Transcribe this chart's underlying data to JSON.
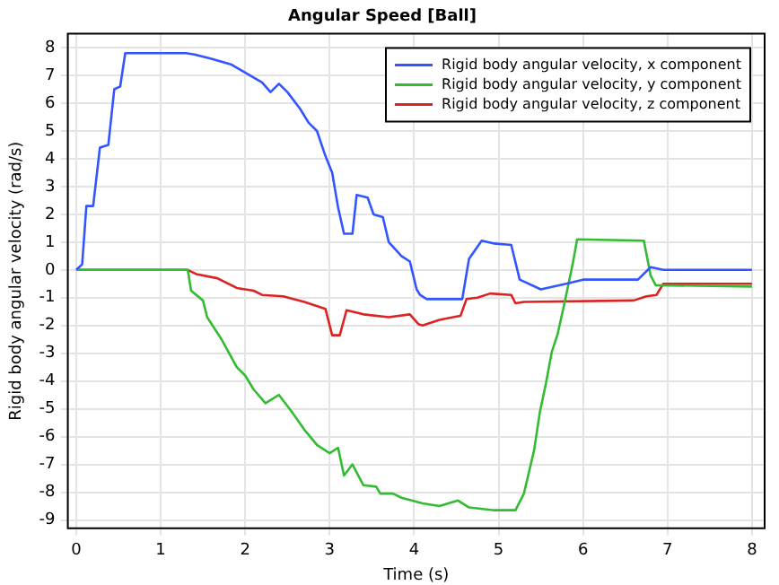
{
  "chart_data": {
    "type": "line",
    "title": "Angular Speed [Ball]",
    "xlabel": "Time (s)",
    "ylabel": "Rigid body angular velocity (rad/s)",
    "xlim": [
      -0.1,
      8.15
    ],
    "ylim": [
      -9.3,
      8.5
    ],
    "xticks": [
      0,
      1,
      2,
      3,
      4,
      5,
      6,
      7,
      8
    ],
    "yticks": [
      -9,
      -8,
      -7,
      -6,
      -5,
      -4,
      -3,
      -2,
      -1,
      0,
      1,
      2,
      3,
      4,
      5,
      6,
      7,
      8
    ],
    "grid": true,
    "legend": "top right",
    "line_style": "solid",
    "marker": "none",
    "series": [
      {
        "name": "Rigid body angular velocity, x component",
        "color": "#3355ff",
        "x": [
          0,
          0.07,
          0.12,
          0.2,
          0.28,
          0.38,
          0.45,
          0.52,
          0.58,
          1.0,
          1.3,
          1.4,
          1.6,
          1.83,
          2.2,
          2.3,
          2.4,
          2.5,
          2.65,
          2.75,
          2.85,
          2.95,
          3.03,
          3.1,
          3.17,
          3.27,
          3.32,
          3.45,
          3.52,
          3.63,
          3.7,
          3.85,
          3.95,
          4.03,
          4.07,
          4.15,
          4.57,
          4.65,
          4.8,
          4.95,
          5.15,
          5.25,
          5.5,
          5.8,
          6.0,
          6.65,
          6.8,
          6.95,
          8
        ],
        "values": [
          0,
          0.2,
          2.3,
          2.3,
          4.4,
          4.5,
          6.5,
          6.6,
          7.8,
          7.8,
          7.8,
          7.75,
          7.6,
          7.4,
          6.75,
          6.4,
          6.7,
          6.4,
          5.8,
          5.3,
          5.0,
          4.1,
          3.5,
          2.25,
          1.3,
          1.3,
          2.7,
          2.6,
          2.0,
          1.9,
          1.0,
          0.5,
          0.3,
          -0.7,
          -0.9,
          -1.05,
          -1.05,
          0.4,
          1.05,
          0.95,
          0.9,
          -0.35,
          -0.7,
          -0.5,
          -0.35,
          -0.35,
          0.1,
          0,
          0
        ]
      },
      {
        "name": "Rigid body angular velocity, y component",
        "color": "#33bb33",
        "x": [
          0,
          1.32,
          1.36,
          1.5,
          1.55,
          1.72,
          1.9,
          2.0,
          2.1,
          2.24,
          2.4,
          2.55,
          2.7,
          2.85,
          3.0,
          3.1,
          3.17,
          3.27,
          3.4,
          3.55,
          3.6,
          3.75,
          3.85,
          4.1,
          4.3,
          4.52,
          4.65,
          4.95,
          5.2,
          5.3,
          5.42,
          5.49,
          5.56,
          5.63,
          5.7,
          5.78,
          5.88,
          5.93,
          6.72,
          6.8,
          6.86,
          8
        ],
        "values": [
          0,
          0,
          -0.75,
          -1.1,
          -1.7,
          -2.5,
          -3.5,
          -3.8,
          -4.3,
          -4.8,
          -4.5,
          -5.1,
          -5.75,
          -6.3,
          -6.6,
          -6.4,
          -7.4,
          -7.0,
          -7.75,
          -7.8,
          -8.05,
          -8.05,
          -8.2,
          -8.4,
          -8.5,
          -8.3,
          -8.55,
          -8.65,
          -8.65,
          -8.05,
          -6.5,
          -5.1,
          -4.1,
          -2.95,
          -2.3,
          -1.2,
          0.25,
          1.1,
          1.05,
          -0.2,
          -0.55,
          -0.6
        ]
      },
      {
        "name": "Rigid body angular velocity, z component",
        "color": "#dd2222",
        "x": [
          0,
          1.32,
          1.42,
          1.67,
          1.9,
          2.1,
          2.2,
          2.45,
          2.7,
          2.95,
          3.03,
          3.12,
          3.2,
          3.4,
          3.7,
          3.95,
          4.05,
          4.1,
          4.3,
          4.55,
          4.62,
          4.75,
          4.9,
          5.15,
          5.2,
          5.3,
          6.6,
          6.75,
          6.87,
          6.95,
          8
        ],
        "values": [
          0,
          0,
          -0.15,
          -0.3,
          -0.65,
          -0.75,
          -0.9,
          -0.95,
          -1.15,
          -1.4,
          -2.35,
          -2.35,
          -1.45,
          -1.6,
          -1.7,
          -1.6,
          -1.95,
          -2.0,
          -1.8,
          -1.65,
          -1.05,
          -1.0,
          -0.85,
          -0.9,
          -1.2,
          -1.15,
          -1.1,
          -0.95,
          -0.9,
          -0.5,
          -0.5
        ]
      }
    ]
  }
}
